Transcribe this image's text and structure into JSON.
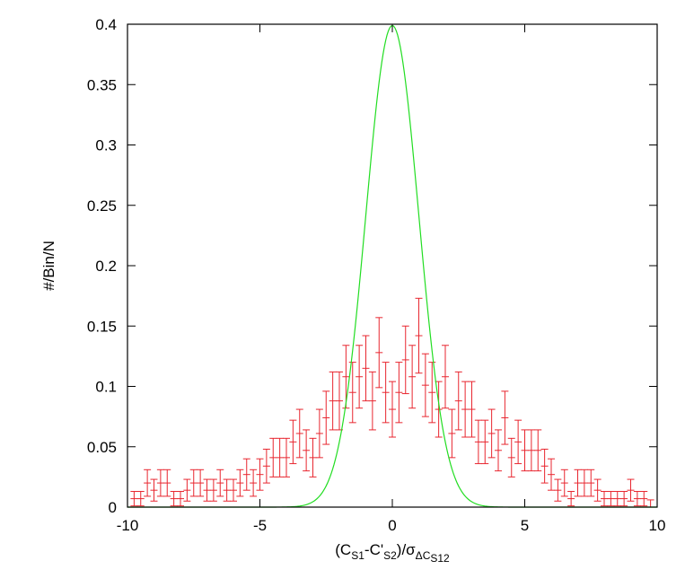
{
  "chart_data": {
    "type": "scatter",
    "title": "",
    "ylabel": "#/Bin/N",
    "xlabel": {
      "parts": [
        {
          "text": "(C",
          "sub": false
        },
        {
          "text": "S1",
          "sub": true
        },
        {
          "text": "-C'",
          "sub": false
        },
        {
          "text": "S2",
          "sub": true
        },
        {
          "text": ")/σ",
          "sub": false
        },
        {
          "text": "ΔC",
          "sub": true
        },
        {
          "text": "S12",
          "sub": "double"
        }
      ]
    },
    "xlim": [
      -10,
      10
    ],
    "ylim": [
      0,
      0.4
    ],
    "xticks": [
      -10,
      -5,
      0,
      5,
      10
    ],
    "xtick_labels": [
      "-10",
      "-5",
      "0",
      "5",
      "10"
    ],
    "yticks": [
      0,
      0.05,
      0.1,
      0.15,
      0.2,
      0.25,
      0.3,
      0.35,
      0.4
    ],
    "ytick_labels": [
      "0",
      "0.05",
      "0.1",
      "0.15",
      "0.2",
      "0.25",
      "0.3",
      "0.35",
      "0.4"
    ],
    "grid": false,
    "legend": "none",
    "series": [
      {
        "kind": "errorbar",
        "color": "#e8262f",
        "x": [
          -9.75,
          -9.5,
          -9.25,
          -9.0,
          -8.75,
          -8.5,
          -8.25,
          -8.0,
          -7.75,
          -7.5,
          -7.25,
          -7.0,
          -6.75,
          -6.5,
          -6.25,
          -6.0,
          -5.75,
          -5.5,
          -5.25,
          -5.0,
          -4.75,
          -4.5,
          -4.25,
          -4.0,
          -3.75,
          -3.5,
          -3.25,
          -3.0,
          -2.75,
          -2.5,
          -2.25,
          -2.0,
          -1.75,
          -1.5,
          -1.25,
          -1.0,
          -0.75,
          -0.5,
          -0.25,
          0.0,
          0.25,
          0.5,
          0.75,
          1.0,
          1.25,
          1.5,
          1.75,
          2.0,
          2.25,
          2.5,
          2.75,
          3.0,
          3.25,
          3.5,
          3.75,
          4.0,
          4.25,
          4.5,
          4.75,
          5.0,
          5.25,
          5.5,
          5.75,
          6.0,
          6.25,
          6.5,
          6.75,
          7.0,
          7.25,
          7.5,
          7.75,
          8.0,
          8.25,
          8.5,
          8.75,
          9.0,
          9.25,
          9.5,
          9.75
        ],
        "y": [
          0.007,
          0.007,
          0.02,
          0.014,
          0.02,
          0.02,
          0.007,
          0.007,
          0.014,
          0.02,
          0.02,
          0.014,
          0.014,
          0.02,
          0.014,
          0.014,
          0.02,
          0.027,
          0.02,
          0.027,
          0.034,
          0.041,
          0.041,
          0.041,
          0.054,
          0.061,
          0.047,
          0.041,
          0.061,
          0.074,
          0.088,
          0.088,
          0.108,
          0.095,
          0.108,
          0.115,
          0.088,
          0.128,
          0.095,
          0.081,
          0.095,
          0.122,
          0.108,
          0.142,
          0.101,
          0.095,
          0.081,
          0.108,
          0.061,
          0.088,
          0.081,
          0.081,
          0.054,
          0.054,
          0.061,
          0.047,
          0.074,
          0.041,
          0.054,
          0.047,
          0.047,
          0.047,
          0.034,
          0.027,
          0.014,
          0.02,
          0.007,
          0.02,
          0.02,
          0.02,
          0.014,
          0.007,
          0.007,
          0.007,
          0.007,
          0.014,
          0.007,
          0.007,
          0.0
        ],
        "err": [
          0.006,
          0.006,
          0.011,
          0.009,
          0.011,
          0.011,
          0.006,
          0.006,
          0.009,
          0.011,
          0.011,
          0.009,
          0.009,
          0.011,
          0.009,
          0.009,
          0.011,
          0.013,
          0.011,
          0.013,
          0.014,
          0.016,
          0.016,
          0.016,
          0.018,
          0.02,
          0.017,
          0.016,
          0.02,
          0.022,
          0.024,
          0.024,
          0.026,
          0.025,
          0.026,
          0.027,
          0.024,
          0.029,
          0.025,
          0.023,
          0.025,
          0.028,
          0.026,
          0.031,
          0.026,
          0.025,
          0.023,
          0.026,
          0.02,
          0.024,
          0.023,
          0.023,
          0.018,
          0.018,
          0.02,
          0.017,
          0.022,
          0.016,
          0.018,
          0.017,
          0.017,
          0.017,
          0.014,
          0.013,
          0.009,
          0.011,
          0.006,
          0.011,
          0.011,
          0.011,
          0.009,
          0.006,
          0.006,
          0.006,
          0.006,
          0.009,
          0.006,
          0.006,
          0.006
        ]
      },
      {
        "kind": "curve",
        "color": "#22dd22",
        "function": "gaussian",
        "mean": 0,
        "sigma": 1,
        "amplitude": 0.3989
      }
    ]
  }
}
